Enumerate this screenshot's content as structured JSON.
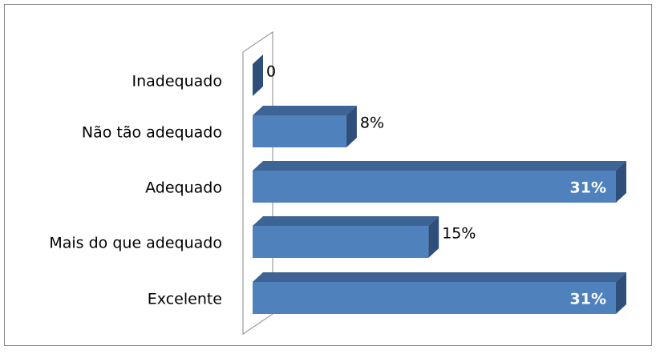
{
  "chart_data": {
    "type": "bar3d_horizontal",
    "categories": [
      "Inadequado",
      "Não tão adequado",
      "Adequado",
      "Mais do que adequado",
      "Excelente"
    ],
    "values": [
      0,
      8,
      31,
      15,
      31
    ],
    "value_labels": [
      "0",
      "8%",
      "31%",
      "15%",
      "31%"
    ],
    "color": "#4f81bd"
  }
}
